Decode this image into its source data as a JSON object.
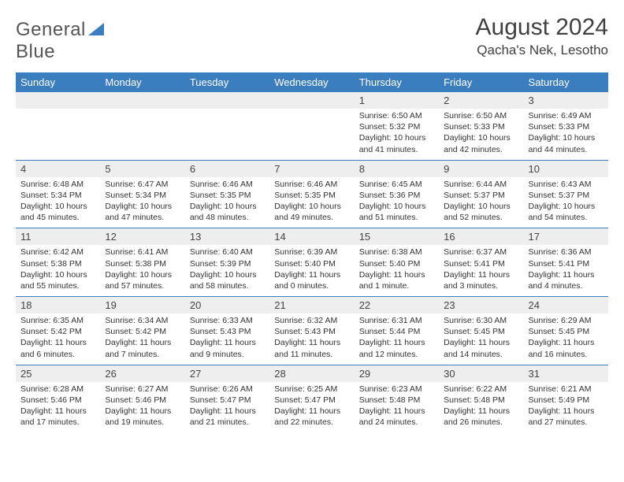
{
  "logo": {
    "part1": "General",
    "part2": "Blue"
  },
  "title": "August 2024",
  "location": "Qacha's Nek, Lesotho",
  "header_bg": "#3a7ebf",
  "daynum_bg": "#eeeeee",
  "text_color": "#333333",
  "dayNames": [
    "Sunday",
    "Monday",
    "Tuesday",
    "Wednesday",
    "Thursday",
    "Friday",
    "Saturday"
  ],
  "weeks": [
    [
      {
        "n": "",
        "sr": "",
        "ss": "",
        "dl": ""
      },
      {
        "n": "",
        "sr": "",
        "ss": "",
        "dl": ""
      },
      {
        "n": "",
        "sr": "",
        "ss": "",
        "dl": ""
      },
      {
        "n": "",
        "sr": "",
        "ss": "",
        "dl": ""
      },
      {
        "n": "1",
        "sr": "Sunrise: 6:50 AM",
        "ss": "Sunset: 5:32 PM",
        "dl": "Daylight: 10 hours and 41 minutes."
      },
      {
        "n": "2",
        "sr": "Sunrise: 6:50 AM",
        "ss": "Sunset: 5:33 PM",
        "dl": "Daylight: 10 hours and 42 minutes."
      },
      {
        "n": "3",
        "sr": "Sunrise: 6:49 AM",
        "ss": "Sunset: 5:33 PM",
        "dl": "Daylight: 10 hours and 44 minutes."
      }
    ],
    [
      {
        "n": "4",
        "sr": "Sunrise: 6:48 AM",
        "ss": "Sunset: 5:34 PM",
        "dl": "Daylight: 10 hours and 45 minutes."
      },
      {
        "n": "5",
        "sr": "Sunrise: 6:47 AM",
        "ss": "Sunset: 5:34 PM",
        "dl": "Daylight: 10 hours and 47 minutes."
      },
      {
        "n": "6",
        "sr": "Sunrise: 6:46 AM",
        "ss": "Sunset: 5:35 PM",
        "dl": "Daylight: 10 hours and 48 minutes."
      },
      {
        "n": "7",
        "sr": "Sunrise: 6:46 AM",
        "ss": "Sunset: 5:35 PM",
        "dl": "Daylight: 10 hours and 49 minutes."
      },
      {
        "n": "8",
        "sr": "Sunrise: 6:45 AM",
        "ss": "Sunset: 5:36 PM",
        "dl": "Daylight: 10 hours and 51 minutes."
      },
      {
        "n": "9",
        "sr": "Sunrise: 6:44 AM",
        "ss": "Sunset: 5:37 PM",
        "dl": "Daylight: 10 hours and 52 minutes."
      },
      {
        "n": "10",
        "sr": "Sunrise: 6:43 AM",
        "ss": "Sunset: 5:37 PM",
        "dl": "Daylight: 10 hours and 54 minutes."
      }
    ],
    [
      {
        "n": "11",
        "sr": "Sunrise: 6:42 AM",
        "ss": "Sunset: 5:38 PM",
        "dl": "Daylight: 10 hours and 55 minutes."
      },
      {
        "n": "12",
        "sr": "Sunrise: 6:41 AM",
        "ss": "Sunset: 5:38 PM",
        "dl": "Daylight: 10 hours and 57 minutes."
      },
      {
        "n": "13",
        "sr": "Sunrise: 6:40 AM",
        "ss": "Sunset: 5:39 PM",
        "dl": "Daylight: 10 hours and 58 minutes."
      },
      {
        "n": "14",
        "sr": "Sunrise: 6:39 AM",
        "ss": "Sunset: 5:40 PM",
        "dl": "Daylight: 11 hours and 0 minutes."
      },
      {
        "n": "15",
        "sr": "Sunrise: 6:38 AM",
        "ss": "Sunset: 5:40 PM",
        "dl": "Daylight: 11 hours and 1 minute."
      },
      {
        "n": "16",
        "sr": "Sunrise: 6:37 AM",
        "ss": "Sunset: 5:41 PM",
        "dl": "Daylight: 11 hours and 3 minutes."
      },
      {
        "n": "17",
        "sr": "Sunrise: 6:36 AM",
        "ss": "Sunset: 5:41 PM",
        "dl": "Daylight: 11 hours and 4 minutes."
      }
    ],
    [
      {
        "n": "18",
        "sr": "Sunrise: 6:35 AM",
        "ss": "Sunset: 5:42 PM",
        "dl": "Daylight: 11 hours and 6 minutes."
      },
      {
        "n": "19",
        "sr": "Sunrise: 6:34 AM",
        "ss": "Sunset: 5:42 PM",
        "dl": "Daylight: 11 hours and 7 minutes."
      },
      {
        "n": "20",
        "sr": "Sunrise: 6:33 AM",
        "ss": "Sunset: 5:43 PM",
        "dl": "Daylight: 11 hours and 9 minutes."
      },
      {
        "n": "21",
        "sr": "Sunrise: 6:32 AM",
        "ss": "Sunset: 5:43 PM",
        "dl": "Daylight: 11 hours and 11 minutes."
      },
      {
        "n": "22",
        "sr": "Sunrise: 6:31 AM",
        "ss": "Sunset: 5:44 PM",
        "dl": "Daylight: 11 hours and 12 minutes."
      },
      {
        "n": "23",
        "sr": "Sunrise: 6:30 AM",
        "ss": "Sunset: 5:45 PM",
        "dl": "Daylight: 11 hours and 14 minutes."
      },
      {
        "n": "24",
        "sr": "Sunrise: 6:29 AM",
        "ss": "Sunset: 5:45 PM",
        "dl": "Daylight: 11 hours and 16 minutes."
      }
    ],
    [
      {
        "n": "25",
        "sr": "Sunrise: 6:28 AM",
        "ss": "Sunset: 5:46 PM",
        "dl": "Daylight: 11 hours and 17 minutes."
      },
      {
        "n": "26",
        "sr": "Sunrise: 6:27 AM",
        "ss": "Sunset: 5:46 PM",
        "dl": "Daylight: 11 hours and 19 minutes."
      },
      {
        "n": "27",
        "sr": "Sunrise: 6:26 AM",
        "ss": "Sunset: 5:47 PM",
        "dl": "Daylight: 11 hours and 21 minutes."
      },
      {
        "n": "28",
        "sr": "Sunrise: 6:25 AM",
        "ss": "Sunset: 5:47 PM",
        "dl": "Daylight: 11 hours and 22 minutes."
      },
      {
        "n": "29",
        "sr": "Sunrise: 6:23 AM",
        "ss": "Sunset: 5:48 PM",
        "dl": "Daylight: 11 hours and 24 minutes."
      },
      {
        "n": "30",
        "sr": "Sunrise: 6:22 AM",
        "ss": "Sunset: 5:48 PM",
        "dl": "Daylight: 11 hours and 26 minutes."
      },
      {
        "n": "31",
        "sr": "Sunrise: 6:21 AM",
        "ss": "Sunset: 5:49 PM",
        "dl": "Daylight: 11 hours and 27 minutes."
      }
    ]
  ]
}
